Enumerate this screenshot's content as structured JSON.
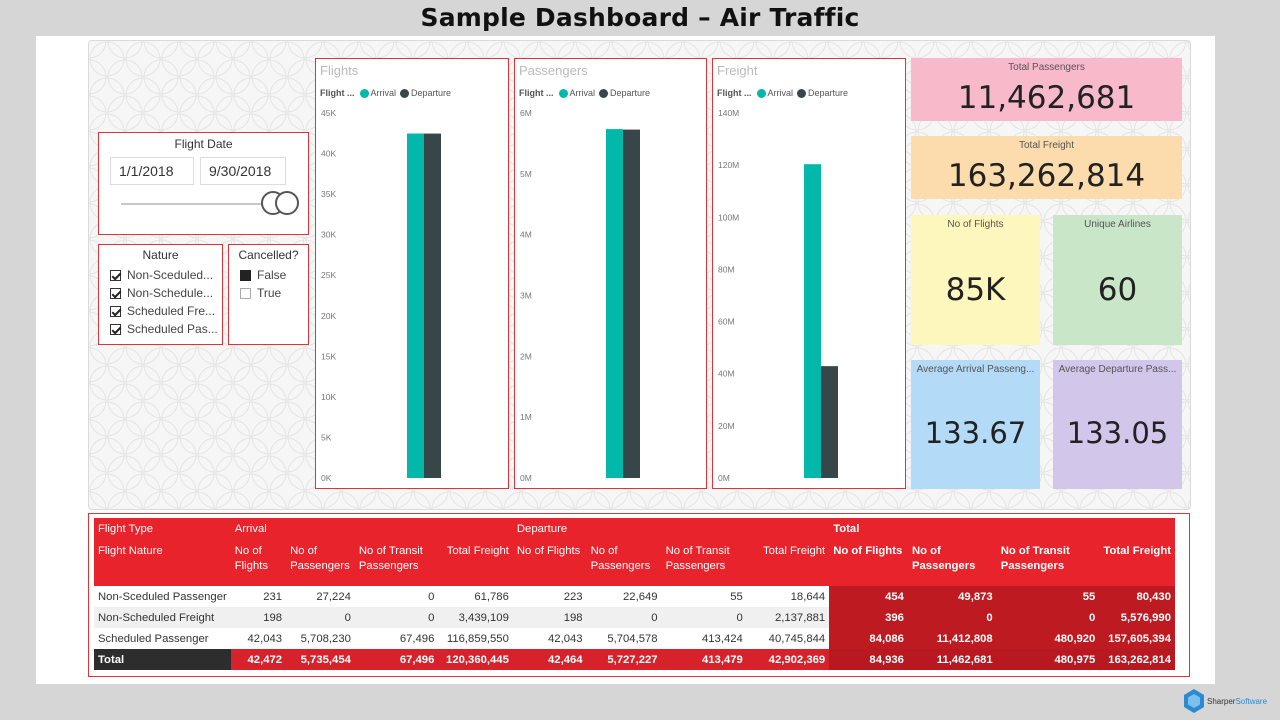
{
  "page_title": "Sample Dashboard – Air Traffic",
  "colors": {
    "arrival": "#01b8aa",
    "departure": "#374649",
    "accent": "#e8232c",
    "border": "#d9353a"
  },
  "flight_date": {
    "title": "Flight Date",
    "start": "1/1/2018",
    "end": "9/30/2018"
  },
  "nature": {
    "title": "Nature",
    "items": [
      {
        "label": "Non-Sceduled...",
        "checked": true
      },
      {
        "label": "Non-Schedule...",
        "checked": true
      },
      {
        "label": "Scheduled Fre...",
        "checked": true
      },
      {
        "label": "Scheduled Pas...",
        "checked": true
      }
    ]
  },
  "cancelled": {
    "title": "Cancelled?",
    "items": [
      {
        "label": "False",
        "state": "filled"
      },
      {
        "label": "True",
        "state": "empty"
      }
    ]
  },
  "legend": {
    "title": "Flight ...",
    "arrival": "Arrival",
    "departure": "Departure"
  },
  "chart_data": [
    {
      "type": "bar",
      "title": "Flights",
      "categories": [
        ""
      ],
      "series": [
        {
          "name": "Arrival",
          "values": [
            42472
          ]
        },
        {
          "name": "Departure",
          "values": [
            42464
          ]
        }
      ],
      "ylim": [
        0,
        45000
      ],
      "ticks": [
        "0K",
        "5K",
        "10K",
        "15K",
        "20K",
        "25K",
        "30K",
        "35K",
        "40K",
        "45K"
      ]
    },
    {
      "type": "bar",
      "title": "Passengers",
      "categories": [
        ""
      ],
      "series": [
        {
          "name": "Arrival",
          "values": [
            5735454
          ]
        },
        {
          "name": "Departure",
          "values": [
            5727227
          ]
        }
      ],
      "ylim": [
        0,
        6000000
      ],
      "ticks": [
        "0M",
        "1M",
        "2M",
        "3M",
        "4M",
        "5M",
        "6M"
      ]
    },
    {
      "type": "bar",
      "title": "Freight",
      "categories": [
        ""
      ],
      "series": [
        {
          "name": "Arrival",
          "values": [
            120360445
          ]
        },
        {
          "name": "Departure",
          "values": [
            42902369
          ]
        }
      ],
      "ylim": [
        0,
        140000000
      ],
      "ticks": [
        "0M",
        "20M",
        "40M",
        "60M",
        "80M",
        "100M",
        "120M",
        "140M"
      ]
    }
  ],
  "cards": {
    "total_passengers": {
      "label": "Total Passengers",
      "value": "11,462,681",
      "color": "#f8b9cb"
    },
    "total_freight": {
      "label": "Total Freight",
      "value": "163,262,814",
      "color": "#fcdcac"
    },
    "no_of_flights": {
      "label": "No of Flights",
      "value": "85K",
      "color": "#fdf6bd"
    },
    "unique_airlines": {
      "label": "Unique Airlines",
      "value": "60",
      "color": "#c9e6c8"
    },
    "avg_arrival": {
      "label": "Average Arrival Passeng...",
      "value": "133.67",
      "color": "#b3daf6"
    },
    "avg_departure": {
      "label": "Average Departure Pass...",
      "value": "133.05",
      "color": "#d2c6ea"
    }
  },
  "table": {
    "group_headers": {
      "flight_type": "Flight Type",
      "arrival": "Arrival",
      "departure": "Departure",
      "total": "Total"
    },
    "row_header": "Flight Nature",
    "column_headers": [
      "No of Flights",
      "No of Passengers",
      "No of Transit Passengers",
      "Total Freight"
    ],
    "col_lines": {
      "flights": [
        "No of",
        "Flights"
      ],
      "passengers": [
        "No of",
        "Passengers"
      ],
      "transit": [
        "No of Transit",
        "Passengers"
      ],
      "freight": "Total Freight",
      "flights_one": "No of Flights"
    },
    "rows": [
      {
        "nature": "Non-Sceduled Passenger",
        "values": [
          "231",
          "27,224",
          "0",
          "61,786",
          "223",
          "22,649",
          "55",
          "18,644",
          "454",
          "49,873",
          "55",
          "80,430"
        ]
      },
      {
        "nature": "Non-Scheduled Freight",
        "values": [
          "198",
          "0",
          "0",
          "3,439,109",
          "198",
          "0",
          "0",
          "2,137,881",
          "396",
          "0",
          "0",
          "5,576,990"
        ]
      },
      {
        "nature": "Scheduled Passenger",
        "values": [
          "42,043",
          "5,708,230",
          "67,496",
          "116,859,550",
          "42,043",
          "5,704,578",
          "413,424",
          "40,745,844",
          "84,086",
          "11,412,808",
          "480,920",
          "157,605,394"
        ]
      }
    ],
    "total": {
      "label": "Total",
      "values": [
        "42,472",
        "5,735,454",
        "67,496",
        "120,360,445",
        "42,464",
        "5,727,227",
        "413,479",
        "42,902,369",
        "84,936",
        "11,462,681",
        "480,975",
        "163,262,814"
      ]
    }
  },
  "logo": {
    "part1": "Sharper",
    "part2": "Software"
  }
}
